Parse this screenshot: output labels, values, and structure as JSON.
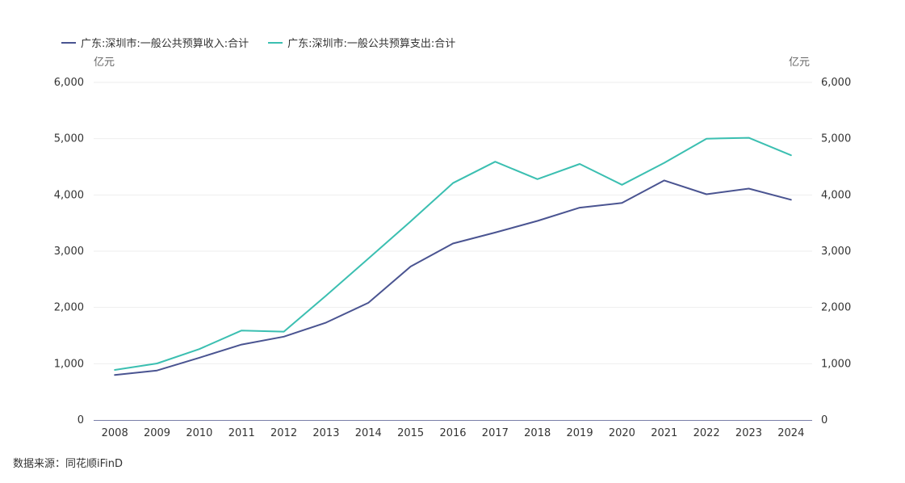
{
  "chart_data": {
    "type": "line",
    "categories": [
      "2008",
      "2009",
      "2010",
      "2011",
      "2012",
      "2013",
      "2014",
      "2015",
      "2016",
      "2017",
      "2018",
      "2019",
      "2020",
      "2021",
      "2022",
      "2023",
      "2024"
    ],
    "series": [
      {
        "name": "广东:深圳市:一般公共预算收入:合计",
        "color": "#4a5491",
        "values": [
          800,
          880,
          1107,
          1340,
          1482,
          1731,
          2083,
          2727,
          3136,
          3332,
          3538,
          3773,
          3857,
          4258,
          4012,
          4112,
          3915
        ]
      },
      {
        "name": "广东:深圳市:一般公共预算支出:合计",
        "color": "#3bbfb1",
        "values": [
          890,
          1005,
          1260,
          1590,
          1570,
          2210,
          2870,
          3530,
          4210,
          4590,
          4280,
          4550,
          4180,
          4570,
          5000,
          5015,
          4705
        ]
      }
    ],
    "y_unit_left": "亿元",
    "y_unit_right": "亿元",
    "ylim": [
      0,
      6000
    ],
    "yticks": [
      "0",
      "1,000",
      "2,000",
      "3,000",
      "4,000",
      "5,000",
      "6,000"
    ],
    "grid": true,
    "legend_position": "top-left"
  },
  "source_text": "数据来源：同花顺iFinD"
}
